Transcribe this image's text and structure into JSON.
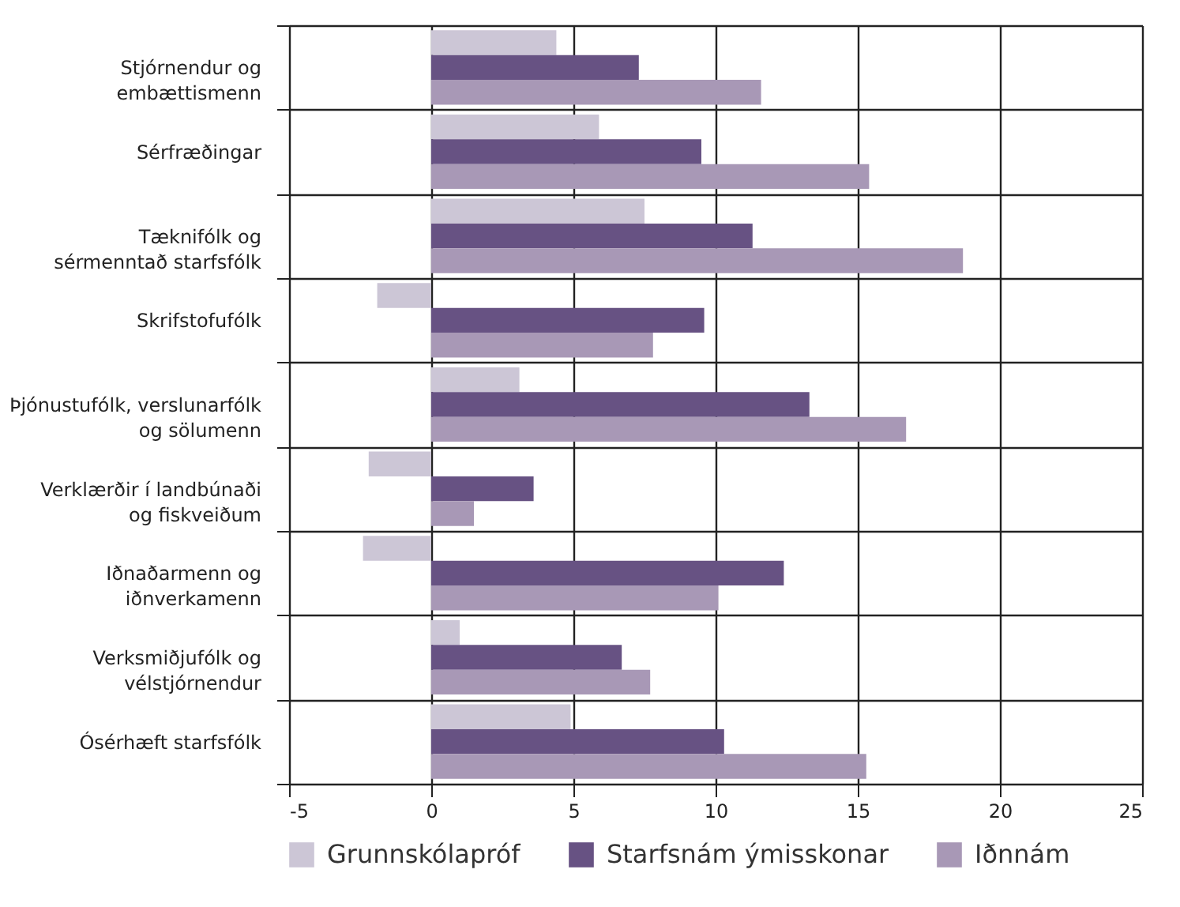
{
  "chart_data": {
    "type": "bar",
    "orientation": "horizontal",
    "categories": [
      "Stjórnendur og\nembættismenn",
      "Sérfræðingar",
      "Tæknifólk og\nsérmenntað starfsfólk",
      "Skrifstofufólk",
      "Þjónustufólk, verslunarfólk\nog sölumenn",
      "Verklærðir í landbúnaði\nog fiskveiðum",
      "Iðnaðarmenn og\niðnverkamenn",
      "Verksmiðjufólk og\nvélstjórnendur",
      "Ósérhæft starfsfólk"
    ],
    "series": [
      {
        "name": "Grunnskólapróf",
        "color": "#ccc6d6",
        "values": [
          4.4,
          5.9,
          7.5,
          -1.9,
          3.1,
          -2.2,
          -2.4,
          1.0,
          4.9
        ]
      },
      {
        "name": "Starfsnám ýmisskonar",
        "color": "#675283",
        "values": [
          7.3,
          9.5,
          11.3,
          9.6,
          13.3,
          3.6,
          12.4,
          6.7,
          10.3
        ]
      },
      {
        "name": "Iðnnám",
        "color": "#a898b6",
        "values": [
          11.6,
          15.4,
          18.7,
          7.8,
          16.7,
          1.5,
          10.1,
          7.7,
          15.3
        ]
      }
    ],
    "xlim": [
      -5,
      25
    ],
    "xticks": [
      -5,
      0,
      5,
      10,
      15,
      20,
      25
    ],
    "grid": true,
    "legend": "bottom"
  }
}
